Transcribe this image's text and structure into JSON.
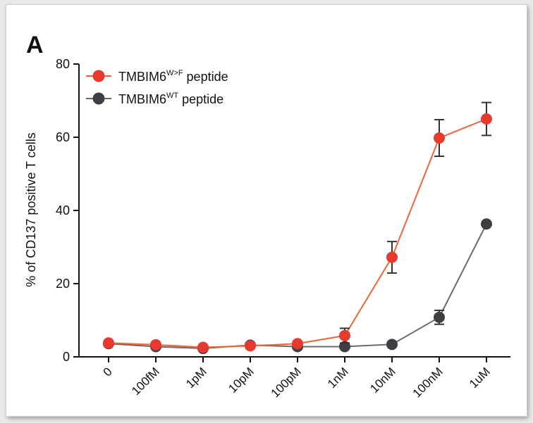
{
  "panel_label": "A",
  "colors": {
    "mutant": "#e8392e",
    "mutant_line": "#ef6436",
    "wildtype": "#3d3f42",
    "wildtype_line": "#6a6a6a",
    "axis": "#111111"
  },
  "chart_data": {
    "type": "line",
    "title": "",
    "xlabel": "",
    "ylabel": "% of CD137 positive T cells",
    "categories": [
      "0",
      "100fM",
      "1pM",
      "10pM",
      "100pM",
      "1nM",
      "10nM",
      "100nM",
      "1uM"
    ],
    "ylim": [
      0,
      80
    ],
    "yticks": [
      0,
      20,
      40,
      60,
      80
    ],
    "grid": false,
    "legend_position": "top-left",
    "series": [
      {
        "key": "mutant",
        "name_base": "TMBIM6",
        "name_sup": "W>F",
        "name_suffix": " peptide",
        "values": [
          3.8,
          3.3,
          2.6,
          3.0,
          3.6,
          5.8,
          27.2,
          59.8,
          65.0
        ],
        "errors": [
          0.4,
          0.4,
          0.5,
          0.5,
          0.6,
          2.0,
          4.3,
          5.0,
          4.5
        ]
      },
      {
        "key": "wildtype",
        "name_base": "TMBIM6",
        "name_sup": "WT",
        "name_suffix": " peptide",
        "values": [
          3.6,
          2.8,
          2.3,
          3.2,
          2.8,
          2.8,
          3.4,
          10.8,
          36.3
        ],
        "errors": [
          0.3,
          0.3,
          0.3,
          0.4,
          0.3,
          0.8,
          0.4,
          1.9,
          0.6
        ]
      }
    ]
  }
}
